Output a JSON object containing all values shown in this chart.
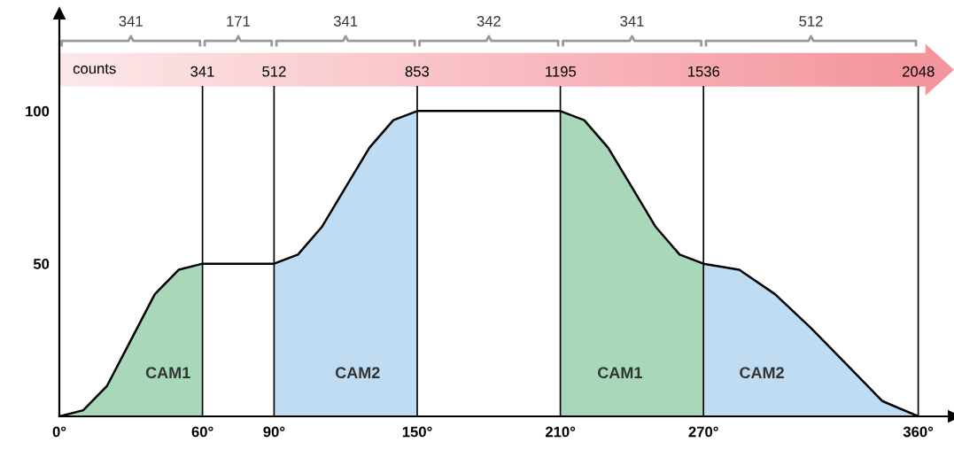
{
  "chart_data": {
    "type": "line",
    "xlim": [
      0,
      375
    ],
    "ylim": [
      0,
      132
    ],
    "xticks": [
      {
        "value": 0,
        "label": "0°"
      },
      {
        "value": 60,
        "label": "60°"
      },
      {
        "value": 90,
        "label": "90°"
      },
      {
        "value": 150,
        "label": "150°"
      },
      {
        "value": 210,
        "label": "210°"
      },
      {
        "value": 270,
        "label": "270°"
      },
      {
        "value": 360,
        "label": "360°"
      }
    ],
    "yticks": [
      50,
      100
    ],
    "grid": false,
    "x2label": "counts",
    "x2lim": [
      0,
      2133
    ],
    "x2ticks": [
      341,
      512,
      853,
      1195,
      1536,
      2048
    ],
    "series": [
      {
        "type": "area",
        "name": "CAM1",
        "color": "#a8d8b9",
        "x": [
          0,
          10,
          20,
          30,
          40,
          50,
          60
        ],
        "values": [
          0,
          2,
          10,
          25,
          40,
          48,
          50
        ]
      },
      {
        "type": "area",
        "name": "CAM2",
        "color": "#c0dcf2",
        "x": [
          90,
          100,
          110,
          120,
          130,
          140,
          150
        ],
        "values": [
          50,
          53,
          62,
          75,
          88,
          97,
          100
        ]
      },
      {
        "type": "area",
        "name": "CAM1",
        "color": "#a8d8b9",
        "x": [
          210,
          220,
          230,
          240,
          250,
          260,
          270
        ],
        "values": [
          100,
          97,
          88,
          75,
          62,
          53,
          50
        ]
      },
      {
        "type": "area",
        "name": "CAM2",
        "color": "#c0dcf2",
        "x": [
          270,
          285,
          300,
          315,
          330,
          345,
          360
        ],
        "values": [
          50,
          48,
          40,
          29,
          17,
          5,
          0
        ]
      },
      {
        "color": "#000000",
        "x": [
          0,
          10,
          20,
          30,
          40,
          50,
          60,
          90,
          100,
          110,
          120,
          130,
          140,
          150,
          210,
          220,
          230,
          240,
          250,
          260,
          270,
          285,
          300,
          315,
          330,
          345,
          360
        ],
        "values": [
          0,
          2,
          10,
          25,
          40,
          48,
          50,
          50,
          53,
          62,
          75,
          88,
          97,
          100,
          100,
          97,
          88,
          75,
          62,
          53,
          50,
          48,
          40,
          29,
          17,
          5,
          0
        ]
      }
    ],
    "ref_lines": [
      {
        "axis": "x",
        "value": 60,
        "color": "#000000"
      },
      {
        "axis": "x",
        "value": 90,
        "color": "#000000"
      },
      {
        "axis": "x",
        "value": 150,
        "color": "#000000"
      },
      {
        "axis": "x",
        "value": 210,
        "color": "#000000"
      },
      {
        "axis": "x",
        "value": 270,
        "color": "#000000"
      },
      {
        "axis": "x",
        "value": 360,
        "color": "#000000"
      }
    ],
    "annotations": [
      "341",
      "171",
      "341",
      "342",
      "341",
      "512"
    ]
  }
}
